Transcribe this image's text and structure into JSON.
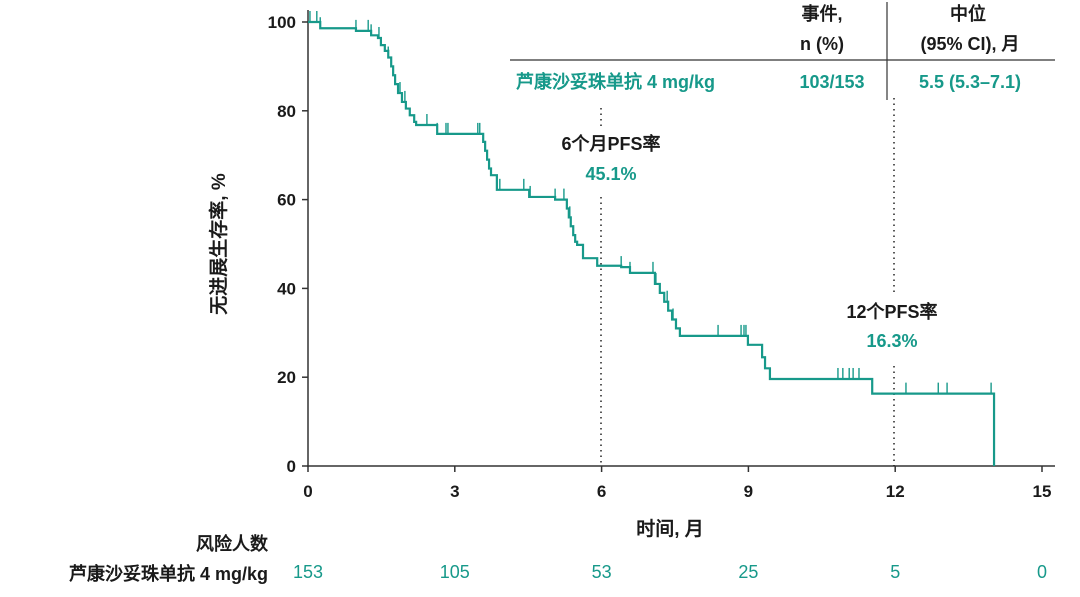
{
  "chart_data": {
    "type": "line",
    "subtype": "kaplan-meier",
    "xlabel": "时间, 月",
    "ylabel": "无进展生存率, %",
    "xlim": [
      0,
      15
    ],
    "ylim": [
      0,
      100
    ],
    "xticks": [
      "0",
      "3",
      "6",
      "9",
      "12",
      "15"
    ],
    "yticks": [
      "0",
      "20",
      "40",
      "60",
      "80",
      "100"
    ],
    "grid": false,
    "color": "#17998a",
    "series": [
      {
        "name": "芦康沙妥珠单抗 4 mg/kg",
        "steps": [
          [
            0,
            100
          ],
          [
            0.25,
            98.6
          ],
          [
            0.98,
            98.0
          ],
          [
            1.29,
            97.0
          ],
          [
            1.43,
            96.4
          ],
          [
            1.49,
            94.8
          ],
          [
            1.57,
            93.5
          ],
          [
            1.64,
            92
          ],
          [
            1.7,
            90
          ],
          [
            1.74,
            88
          ],
          [
            1.78,
            86
          ],
          [
            1.84,
            84
          ],
          [
            1.92,
            82
          ],
          [
            2.0,
            80.5
          ],
          [
            2.08,
            79
          ],
          [
            2.17,
            77.5
          ],
          [
            2.21,
            76.8
          ],
          [
            2.64,
            74.8
          ],
          [
            3.58,
            73
          ],
          [
            3.62,
            71
          ],
          [
            3.66,
            69
          ],
          [
            3.7,
            67
          ],
          [
            3.74,
            65.5
          ],
          [
            3.86,
            62.2
          ],
          [
            4.52,
            60.6
          ],
          [
            5.05,
            60
          ],
          [
            5.29,
            58
          ],
          [
            5.33,
            56
          ],
          [
            5.37,
            54
          ],
          [
            5.42,
            52
          ],
          [
            5.46,
            50.5
          ],
          [
            5.5,
            49.8
          ],
          [
            5.62,
            46.8
          ],
          [
            5.91,
            45.1
          ],
          [
            6.4,
            44.8
          ],
          [
            6.58,
            43.5
          ],
          [
            7.09,
            41
          ],
          [
            7.19,
            39
          ],
          [
            7.28,
            37
          ],
          [
            7.36,
            35
          ],
          [
            7.44,
            33
          ],
          [
            7.52,
            31
          ],
          [
            7.6,
            29.3
          ],
          [
            8.99,
            27.3
          ],
          [
            9.28,
            24.5
          ],
          [
            9.34,
            22
          ],
          [
            9.44,
            19.6
          ],
          [
            11.53,
            16.3
          ],
          [
            14.02,
            0
          ]
        ],
        "censored": [
          0.04,
          0.18,
          0.25,
          0.98,
          1.23,
          1.29,
          1.45,
          1.64,
          1.88,
          1.98,
          2.43,
          2.64,
          2.82,
          2.86,
          3.47,
          3.51,
          3.92,
          4.41,
          4.54,
          5.05,
          5.23,
          5.35,
          6.4,
          6.58,
          7.05,
          7.11,
          7.34,
          7.46,
          8.38,
          8.85,
          8.91,
          8.95,
          10.83,
          10.93,
          11.06,
          11.14,
          11.26,
          12.22,
          12.88,
          13.06,
          13.96
        ]
      }
    ],
    "annotations": {
      "six_month": {
        "title": "6个月PFS率",
        "value": "45.1%",
        "x": 6
      },
      "twelve_month": {
        "title": "12个PFS率",
        "value": "16.3%",
        "x": 12
      }
    },
    "summary_table": {
      "header_events_1": "事件,",
      "header_events_2": "n (%)",
      "header_median_1": "中位",
      "header_median_2": "(95% CI), 月",
      "row_label": "芦康沙妥珠单抗 4 mg/kg",
      "events": "103/153",
      "median": "5.5 (5.3–7.1)"
    },
    "risk_table": {
      "title": "风险人数",
      "row_label": "芦康沙妥珠单抗 4 mg/kg",
      "times": [
        0,
        3,
        6,
        9,
        12,
        15
      ],
      "values": [
        "153",
        "105",
        "53",
        "25",
        "5",
        "0"
      ]
    }
  }
}
